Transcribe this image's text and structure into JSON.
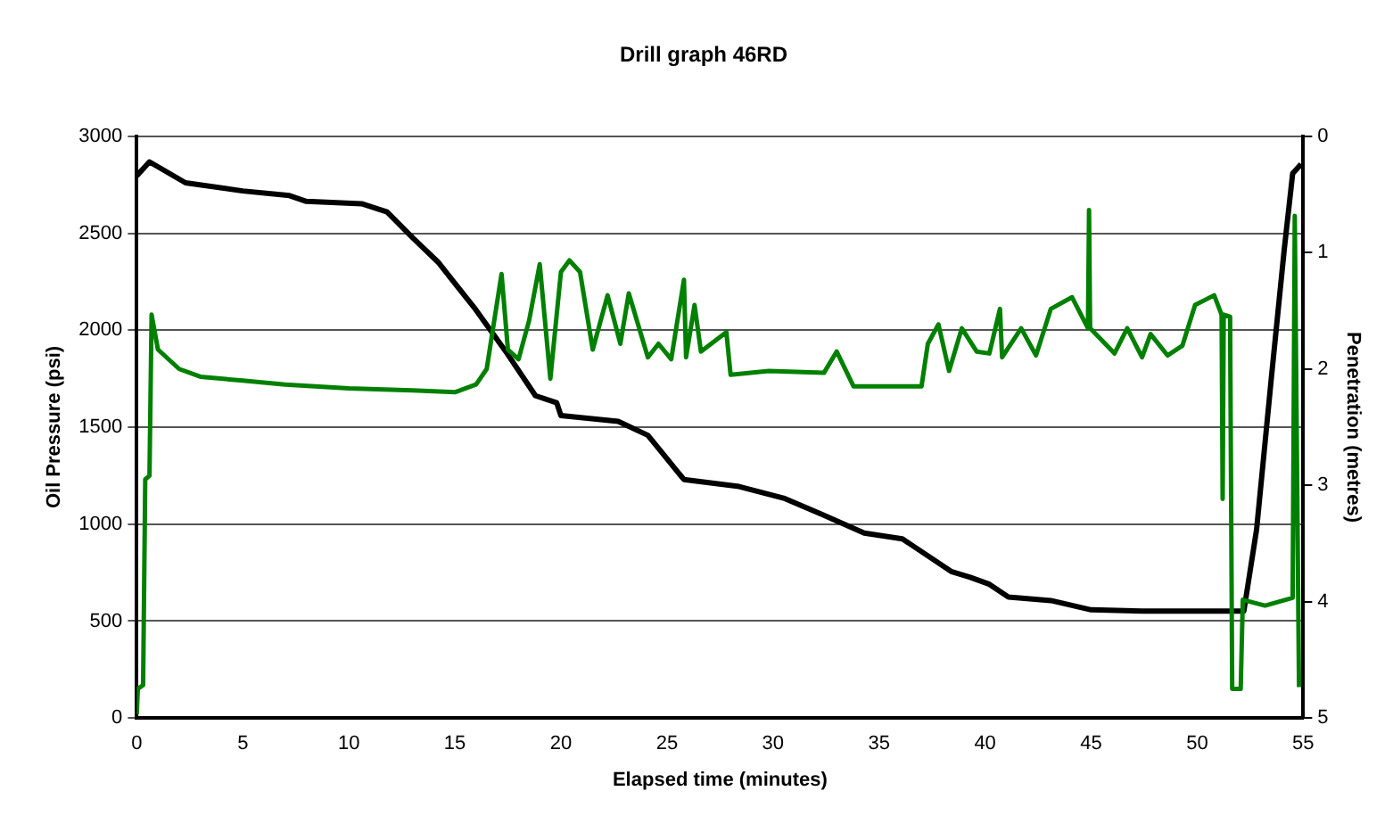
{
  "chart_data": {
    "type": "line",
    "title": "Drill graph 46RD",
    "xlabel": "Elapsed time (minutes)",
    "ylabel": "Oil Pressure (psi)",
    "y2label": "Penetration (metres)",
    "xlim": [
      0,
      55
    ],
    "xticks": [
      0,
      5,
      10,
      15,
      20,
      25,
      30,
      35,
      40,
      45,
      50,
      55
    ],
    "ylim": [
      0,
      3000
    ],
    "yticks": [
      0,
      500,
      1000,
      1500,
      2000,
      2500,
      3000
    ],
    "y2lim": [
      5,
      0
    ],
    "y2ticks": [
      0,
      1,
      2,
      3,
      4,
      5
    ],
    "grid": "y",
    "legend": false,
    "marker": "none",
    "line_style": "solid",
    "series": [
      {
        "color": "#008000",
        "x": [
          0,
          0.05,
          0.3,
          0.4,
          0.6,
          0.7,
          1,
          2,
          3,
          5,
          7,
          10,
          13,
          15,
          16,
          16.5,
          17.2,
          17.5,
          18,
          18.5,
          19,
          19.5,
          20,
          20.4,
          20.9,
          21.5,
          22.2,
          22.8,
          23.2,
          24.1,
          24.6,
          25.2,
          25.8,
          25.9,
          26.3,
          26.6,
          27.8,
          28,
          29.8,
          32.4,
          33,
          33.8,
          37,
          37.3,
          37.8,
          38.3,
          38.9,
          39.6,
          40.2,
          40.7,
          40.8,
          41.7,
          42.4,
          43.1,
          44.1,
          44.85,
          44.9,
          44.95,
          46.1,
          46.7,
          47.4,
          47.8,
          48.6,
          49.3,
          49.9,
          50.8,
          51.15,
          51.2,
          51.25,
          51.55,
          51.65,
          52.05,
          52.15,
          53.2,
          54.5,
          54.6,
          54.8
        ],
        "values": [
          20,
          150,
          170,
          1230,
          1250,
          2080,
          1900,
          1800,
          1760,
          1740,
          1720,
          1700,
          1690,
          1680,
          1720,
          1800,
          2290,
          1900,
          1850,
          2050,
          2340,
          1750,
          2300,
          2360,
          2300,
          1900,
          2180,
          1930,
          2190,
          1860,
          1930,
          1850,
          2260,
          1860,
          2130,
          1890,
          1990,
          1770,
          1790,
          1780,
          1890,
          1710,
          1710,
          1930,
          2030,
          1790,
          2010,
          1890,
          1880,
          2110,
          1860,
          2010,
          1870,
          2110,
          2170,
          2010,
          2620,
          2010,
          1880,
          2010,
          1860,
          1980,
          1870,
          1920,
          2130,
          2180,
          2080,
          1130,
          2080,
          2070,
          150,
          150,
          610,
          580,
          620,
          2590,
          160
        ],
        "axis": "y"
      },
      {
        "color": "#000000",
        "x": [
          0,
          0.6,
          2.3,
          5,
          7.2,
          8,
          10.6,
          11.8,
          13,
          14.2,
          15.9,
          17.4,
          18.8,
          19.8,
          20,
          22.7,
          24.1,
          25.8,
          28.4,
          30.5,
          32.3,
          34.3,
          36.1,
          38.4,
          39.3,
          40.2,
          41.1,
          43.1,
          45,
          47.4,
          52.2,
          52.8,
          53.5,
          54.1,
          54.5,
          54.9
        ],
        "values": [
          0.34,
          0.22,
          0.4,
          0.47,
          0.51,
          0.56,
          0.58,
          0.65,
          0.87,
          1.08,
          1.47,
          1.85,
          2.23,
          2.29,
          2.4,
          2.45,
          2.57,
          2.95,
          3.01,
          3.11,
          3.25,
          3.41,
          3.46,
          3.74,
          3.79,
          3.85,
          3.96,
          3.99,
          4.07,
          4.08,
          4.08,
          3.38,
          2.07,
          0.98,
          0.32,
          0.24
        ],
        "axis": "y2"
      }
    ]
  }
}
